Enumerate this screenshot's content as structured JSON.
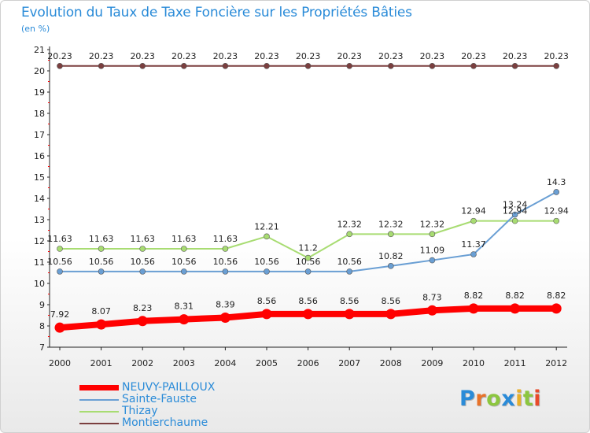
{
  "header": {
    "title": "Evolution du Taux de Taxe Foncière sur les Propriétés Bâties",
    "subtitle": "(en %)"
  },
  "colors": {
    "title": "#2a8bd8",
    "NEUVY-PAILLOUX": "#ff0000",
    "Sainte-Fauste": "#6a9fd4",
    "Thizay": "#a8dc72",
    "Montierchaume": "#7b3f3f"
  },
  "logo": {
    "letters": [
      "P",
      "r",
      "o",
      "x",
      "i",
      "t",
      "i"
    ],
    "colors": [
      "#2a8bd8",
      "#e8732a",
      "#8cc63f",
      "#2a8bd8",
      "#e8b02a",
      "#8cc63f",
      "#e84a2a"
    ]
  },
  "chart_data": {
    "type": "line",
    "title": "Evolution du Taux de Taxe Foncière sur les Propriétés Bâties",
    "ylabel": "(en %)",
    "xlabel": "",
    "ylim": [
      7,
      21
    ],
    "yticks": [
      7,
      8,
      9,
      10,
      11,
      12,
      13,
      14,
      15,
      16,
      17,
      18,
      19,
      20,
      21
    ],
    "categories": [
      "2000",
      "2001",
      "2002",
      "2003",
      "2004",
      "2005",
      "2006",
      "2007",
      "2008",
      "2009",
      "2010",
      "2011",
      "2012"
    ],
    "legend_position": "bottom-left",
    "series": [
      {
        "name": "NEUVY-PAILLOUX",
        "values": [
          7.92,
          8.07,
          8.23,
          8.31,
          8.39,
          8.56,
          8.56,
          8.56,
          8.56,
          8.73,
          8.82,
          8.82,
          8.82
        ],
        "labels": [
          "7.92",
          "8.07",
          "8.23",
          "8.31",
          "8.39",
          "8.56",
          "8.56",
          "8.56",
          "8.56",
          "8.73",
          "8.82",
          "8.82",
          "8.82"
        ]
      },
      {
        "name": "Sainte-Fauste",
        "values": [
          10.56,
          10.56,
          10.56,
          10.56,
          10.56,
          10.56,
          10.56,
          10.56,
          10.82,
          11.09,
          11.37,
          13.24,
          14.3
        ],
        "labels": [
          "10.56",
          "10.56",
          "10.56",
          "10.56",
          "10.56",
          "10.56",
          "10.56",
          "10.56",
          "10.82",
          "11.09",
          "11.37",
          "13.24",
          "14.3"
        ]
      },
      {
        "name": "Thizay",
        "values": [
          11.63,
          11.63,
          11.63,
          11.63,
          11.63,
          12.21,
          11.2,
          12.32,
          12.32,
          12.32,
          12.94,
          12.94,
          12.94
        ],
        "labels": [
          "11.63",
          "11.63",
          "11.63",
          "11.63",
          "11.63",
          "12.21",
          "11.2",
          "12.32",
          "12.32",
          "12.32",
          "12.94",
          "12.94",
          "12.94"
        ]
      },
      {
        "name": "Montierchaume",
        "values": [
          20.23,
          20.23,
          20.23,
          20.23,
          20.23,
          20.23,
          20.23,
          20.23,
          20.23,
          20.23,
          20.23,
          20.23,
          20.23
        ],
        "labels": [
          "20.23",
          "20.23",
          "20.23",
          "20.23",
          "20.23",
          "20.23",
          "20.23",
          "20.23",
          "20.23",
          "20.23",
          "20.23",
          "20.23",
          "20.23"
        ]
      }
    ]
  }
}
